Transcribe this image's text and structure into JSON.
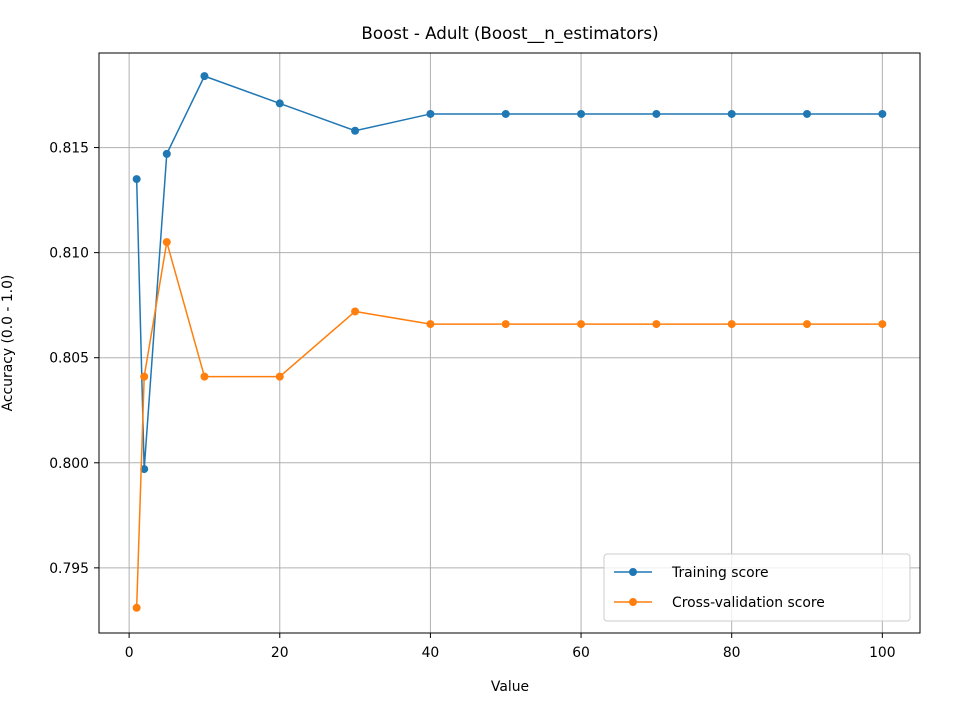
{
  "chart_data": {
    "type": "line",
    "title": "Boost - Adult (Boost__n_estimators)",
    "xlabel": "Value",
    "ylabel": "Accuracy (0.0 - 1.0)",
    "xlim": [
      -4,
      105
    ],
    "ylim": [
      0.7919,
      0.8195
    ],
    "xticks": [
      0,
      20,
      40,
      60,
      80,
      100
    ],
    "xtick_labels": [
      "0",
      "20",
      "40",
      "60",
      "80",
      "100"
    ],
    "yticks": [
      0.795,
      0.8,
      0.805,
      0.81,
      0.815
    ],
    "ytick_labels": [
      "0.795",
      "0.800",
      "0.805",
      "0.810",
      "0.815"
    ],
    "grid": true,
    "legend_position": "lower-right",
    "x": [
      1,
      2,
      5,
      10,
      20,
      30,
      40,
      50,
      60,
      70,
      80,
      90,
      100
    ],
    "series": [
      {
        "name": "Training score",
        "color": "#1f77b4",
        "marker": "circle",
        "values": [
          0.8135,
          0.7997,
          0.8147,
          0.8184,
          0.8171,
          0.8158,
          0.8166,
          0.8166,
          0.8166,
          0.8166,
          0.8166,
          0.8166,
          0.8166
        ]
      },
      {
        "name": "Cross-validation score",
        "color": "#ff7f0e",
        "marker": "circle",
        "values": [
          0.7931,
          0.8041,
          0.8105,
          0.8041,
          0.8041,
          0.8072,
          0.8066,
          0.8066,
          0.8066,
          0.8066,
          0.8066,
          0.8066,
          0.8066
        ]
      }
    ]
  }
}
